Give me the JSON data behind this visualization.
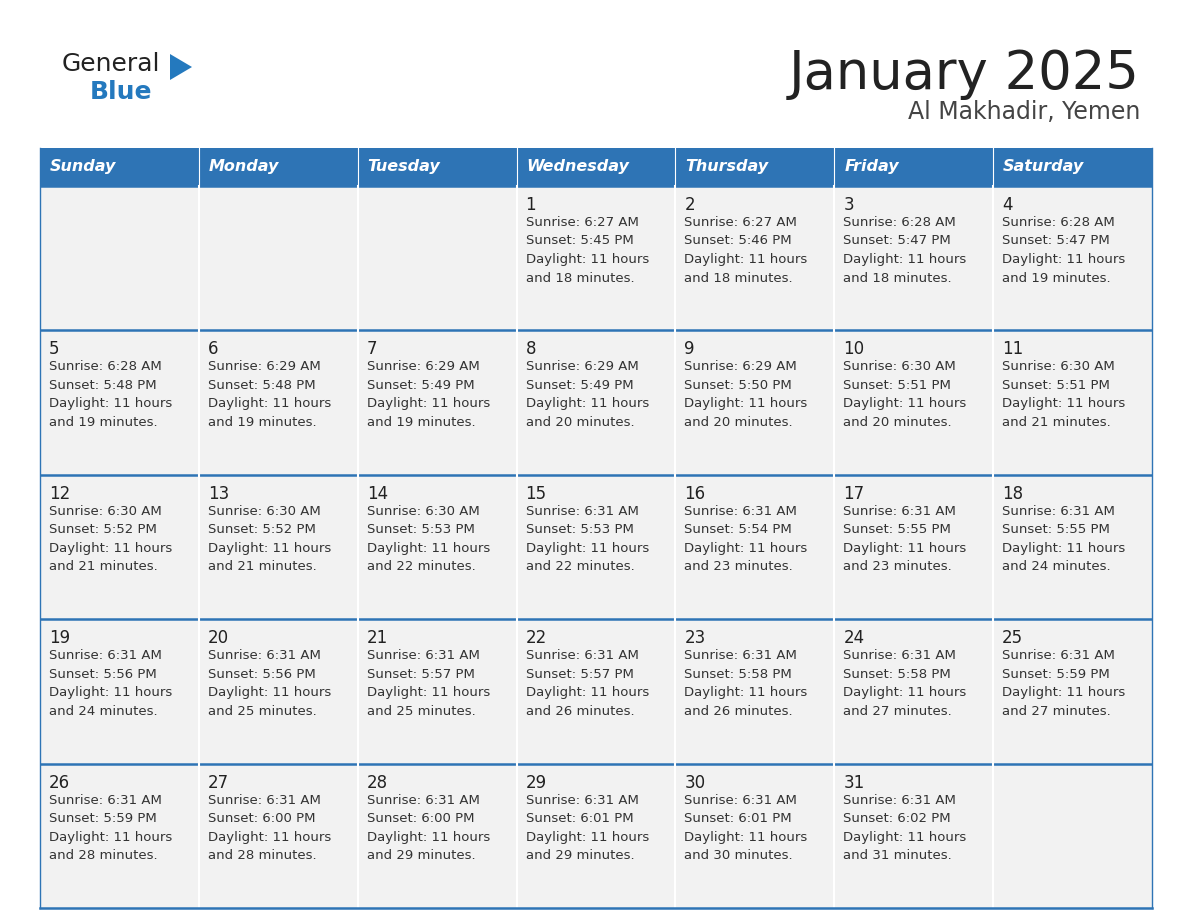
{
  "title": "January 2025",
  "subtitle": "Al Makhadir, Yemen",
  "header_bg_color": "#2E74B5",
  "header_text_color": "#FFFFFF",
  "day_names": [
    "Sunday",
    "Monday",
    "Tuesday",
    "Wednesday",
    "Thursday",
    "Friday",
    "Saturday"
  ],
  "cell_bg_color": "#F2F2F2",
  "cell_text_color": "#333333",
  "number_color": "#222222",
  "title_color": "#222222",
  "subtitle_color": "#444444",
  "divider_color": "#2E74B5",
  "logo_text_color": "#222222",
  "logo_blue_color": "#2479BE",
  "logo_triangle_color": "#2479BE",
  "weeks": [
    {
      "days": [
        {
          "day": null,
          "sunrise": null,
          "sunset": null,
          "daylight_line1": null,
          "daylight_line2": null
        },
        {
          "day": null,
          "sunrise": null,
          "sunset": null,
          "daylight_line1": null,
          "daylight_line2": null
        },
        {
          "day": null,
          "sunrise": null,
          "sunset": null,
          "daylight_line1": null,
          "daylight_line2": null
        },
        {
          "day": 1,
          "sunrise": "Sunrise: 6:27 AM",
          "sunset": "Sunset: 5:45 PM",
          "daylight_line1": "Daylight: 11 hours",
          "daylight_line2": "and 18 minutes."
        },
        {
          "day": 2,
          "sunrise": "Sunrise: 6:27 AM",
          "sunset": "Sunset: 5:46 PM",
          "daylight_line1": "Daylight: 11 hours",
          "daylight_line2": "and 18 minutes."
        },
        {
          "day": 3,
          "sunrise": "Sunrise: 6:28 AM",
          "sunset": "Sunset: 5:47 PM",
          "daylight_line1": "Daylight: 11 hours",
          "daylight_line2": "and 18 minutes."
        },
        {
          "day": 4,
          "sunrise": "Sunrise: 6:28 AM",
          "sunset": "Sunset: 5:47 PM",
          "daylight_line1": "Daylight: 11 hours",
          "daylight_line2": "and 19 minutes."
        }
      ]
    },
    {
      "days": [
        {
          "day": 5,
          "sunrise": "Sunrise: 6:28 AM",
          "sunset": "Sunset: 5:48 PM",
          "daylight_line1": "Daylight: 11 hours",
          "daylight_line2": "and 19 minutes."
        },
        {
          "day": 6,
          "sunrise": "Sunrise: 6:29 AM",
          "sunset": "Sunset: 5:48 PM",
          "daylight_line1": "Daylight: 11 hours",
          "daylight_line2": "and 19 minutes."
        },
        {
          "day": 7,
          "sunrise": "Sunrise: 6:29 AM",
          "sunset": "Sunset: 5:49 PM",
          "daylight_line1": "Daylight: 11 hours",
          "daylight_line2": "and 19 minutes."
        },
        {
          "day": 8,
          "sunrise": "Sunrise: 6:29 AM",
          "sunset": "Sunset: 5:49 PM",
          "daylight_line1": "Daylight: 11 hours",
          "daylight_line2": "and 20 minutes."
        },
        {
          "day": 9,
          "sunrise": "Sunrise: 6:29 AM",
          "sunset": "Sunset: 5:50 PM",
          "daylight_line1": "Daylight: 11 hours",
          "daylight_line2": "and 20 minutes."
        },
        {
          "day": 10,
          "sunrise": "Sunrise: 6:30 AM",
          "sunset": "Sunset: 5:51 PM",
          "daylight_line1": "Daylight: 11 hours",
          "daylight_line2": "and 20 minutes."
        },
        {
          "day": 11,
          "sunrise": "Sunrise: 6:30 AM",
          "sunset": "Sunset: 5:51 PM",
          "daylight_line1": "Daylight: 11 hours",
          "daylight_line2": "and 21 minutes."
        }
      ]
    },
    {
      "days": [
        {
          "day": 12,
          "sunrise": "Sunrise: 6:30 AM",
          "sunset": "Sunset: 5:52 PM",
          "daylight_line1": "Daylight: 11 hours",
          "daylight_line2": "and 21 minutes."
        },
        {
          "day": 13,
          "sunrise": "Sunrise: 6:30 AM",
          "sunset": "Sunset: 5:52 PM",
          "daylight_line1": "Daylight: 11 hours",
          "daylight_line2": "and 21 minutes."
        },
        {
          "day": 14,
          "sunrise": "Sunrise: 6:30 AM",
          "sunset": "Sunset: 5:53 PM",
          "daylight_line1": "Daylight: 11 hours",
          "daylight_line2": "and 22 minutes."
        },
        {
          "day": 15,
          "sunrise": "Sunrise: 6:31 AM",
          "sunset": "Sunset: 5:53 PM",
          "daylight_line1": "Daylight: 11 hours",
          "daylight_line2": "and 22 minutes."
        },
        {
          "day": 16,
          "sunrise": "Sunrise: 6:31 AM",
          "sunset": "Sunset: 5:54 PM",
          "daylight_line1": "Daylight: 11 hours",
          "daylight_line2": "and 23 minutes."
        },
        {
          "day": 17,
          "sunrise": "Sunrise: 6:31 AM",
          "sunset": "Sunset: 5:55 PM",
          "daylight_line1": "Daylight: 11 hours",
          "daylight_line2": "and 23 minutes."
        },
        {
          "day": 18,
          "sunrise": "Sunrise: 6:31 AM",
          "sunset": "Sunset: 5:55 PM",
          "daylight_line1": "Daylight: 11 hours",
          "daylight_line2": "and 24 minutes."
        }
      ]
    },
    {
      "days": [
        {
          "day": 19,
          "sunrise": "Sunrise: 6:31 AM",
          "sunset": "Sunset: 5:56 PM",
          "daylight_line1": "Daylight: 11 hours",
          "daylight_line2": "and 24 minutes."
        },
        {
          "day": 20,
          "sunrise": "Sunrise: 6:31 AM",
          "sunset": "Sunset: 5:56 PM",
          "daylight_line1": "Daylight: 11 hours",
          "daylight_line2": "and 25 minutes."
        },
        {
          "day": 21,
          "sunrise": "Sunrise: 6:31 AM",
          "sunset": "Sunset: 5:57 PM",
          "daylight_line1": "Daylight: 11 hours",
          "daylight_line2": "and 25 minutes."
        },
        {
          "day": 22,
          "sunrise": "Sunrise: 6:31 AM",
          "sunset": "Sunset: 5:57 PM",
          "daylight_line1": "Daylight: 11 hours",
          "daylight_line2": "and 26 minutes."
        },
        {
          "day": 23,
          "sunrise": "Sunrise: 6:31 AM",
          "sunset": "Sunset: 5:58 PM",
          "daylight_line1": "Daylight: 11 hours",
          "daylight_line2": "and 26 minutes."
        },
        {
          "day": 24,
          "sunrise": "Sunrise: 6:31 AM",
          "sunset": "Sunset: 5:58 PM",
          "daylight_line1": "Daylight: 11 hours",
          "daylight_line2": "and 27 minutes."
        },
        {
          "day": 25,
          "sunrise": "Sunrise: 6:31 AM",
          "sunset": "Sunset: 5:59 PM",
          "daylight_line1": "Daylight: 11 hours",
          "daylight_line2": "and 27 minutes."
        }
      ]
    },
    {
      "days": [
        {
          "day": 26,
          "sunrise": "Sunrise: 6:31 AM",
          "sunset": "Sunset: 5:59 PM",
          "daylight_line1": "Daylight: 11 hours",
          "daylight_line2": "and 28 minutes."
        },
        {
          "day": 27,
          "sunrise": "Sunrise: 6:31 AM",
          "sunset": "Sunset: 6:00 PM",
          "daylight_line1": "Daylight: 11 hours",
          "daylight_line2": "and 28 minutes."
        },
        {
          "day": 28,
          "sunrise": "Sunrise: 6:31 AM",
          "sunset": "Sunset: 6:00 PM",
          "daylight_line1": "Daylight: 11 hours",
          "daylight_line2": "and 29 minutes."
        },
        {
          "day": 29,
          "sunrise": "Sunrise: 6:31 AM",
          "sunset": "Sunset: 6:01 PM",
          "daylight_line1": "Daylight: 11 hours",
          "daylight_line2": "and 29 minutes."
        },
        {
          "day": 30,
          "sunrise": "Sunrise: 6:31 AM",
          "sunset": "Sunset: 6:01 PM",
          "daylight_line1": "Daylight: 11 hours",
          "daylight_line2": "and 30 minutes."
        },
        {
          "day": 31,
          "sunrise": "Sunrise: 6:31 AM",
          "sunset": "Sunset: 6:02 PM",
          "daylight_line1": "Daylight: 11 hours",
          "daylight_line2": "and 31 minutes."
        },
        {
          "day": null,
          "sunrise": null,
          "sunset": null,
          "daylight_line1": null,
          "daylight_line2": null
        }
      ]
    }
  ]
}
